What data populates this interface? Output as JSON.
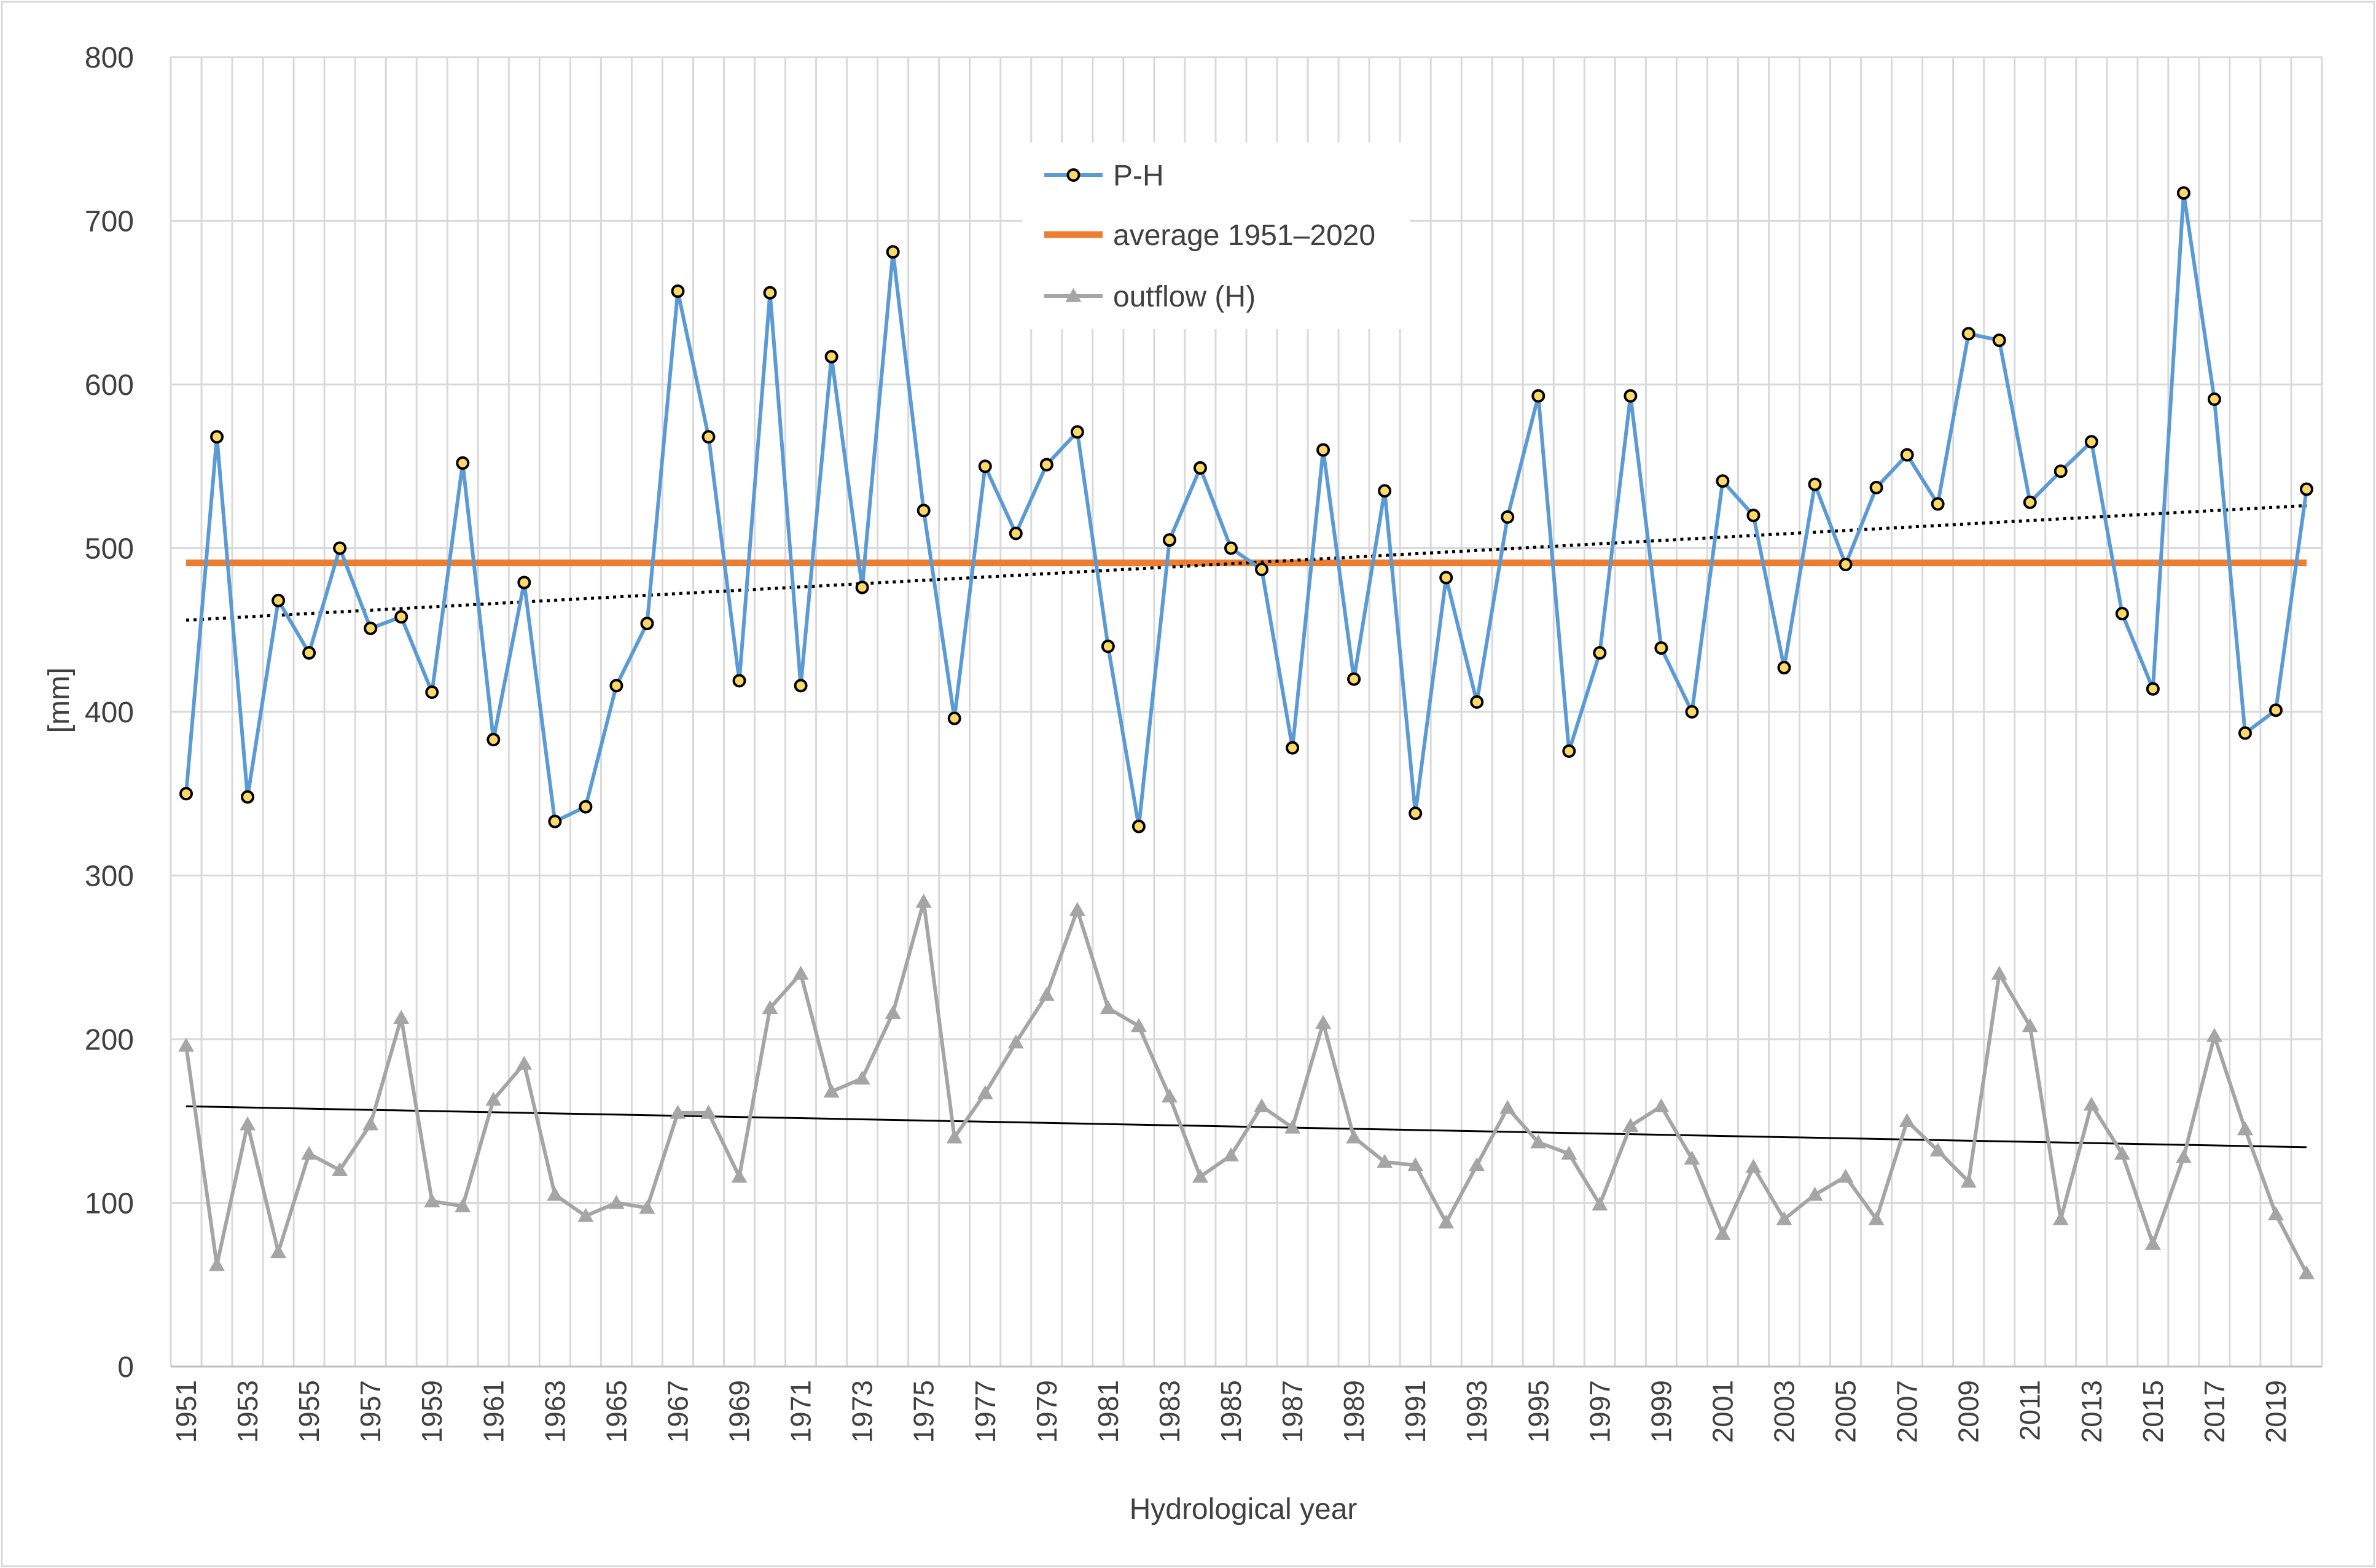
{
  "chart_data": {
    "type": "line",
    "title": "",
    "xlabel": "Hydrological year",
    "ylabel": "[mm]",
    "ylim": [
      0,
      800
    ],
    "ytick_step": 100,
    "grid": true,
    "legend_position": "top-center",
    "x": [
      1951,
      1952,
      1953,
      1954,
      1955,
      1956,
      1957,
      1958,
      1959,
      1960,
      1961,
      1962,
      1963,
      1964,
      1965,
      1966,
      1967,
      1968,
      1969,
      1970,
      1971,
      1972,
      1973,
      1974,
      1975,
      1976,
      1977,
      1978,
      1979,
      1980,
      1981,
      1982,
      1983,
      1984,
      1985,
      1986,
      1987,
      1988,
      1989,
      1990,
      1991,
      1992,
      1993,
      1994,
      1995,
      1996,
      1997,
      1998,
      1999,
      2000,
      2001,
      2002,
      2003,
      2004,
      2005,
      2006,
      2007,
      2008,
      2009,
      2010,
      2011,
      2012,
      2013,
      2014,
      2015,
      2016,
      2017,
      2018,
      2019,
      2020
    ],
    "x_tick_labels": [
      "1951",
      "1953",
      "1955",
      "1957",
      "1959",
      "1961",
      "1963",
      "1965",
      "1967",
      "1969",
      "1971",
      "1973",
      "1975",
      "1977",
      "1979",
      "1981",
      "1983",
      "1985",
      "1987",
      "1989",
      "1991",
      "1993",
      "1995",
      "1997",
      "1999",
      "2001",
      "2003",
      "2005",
      "2007",
      "2009",
      "2011",
      "2013",
      "2015",
      "2017",
      "2019"
    ],
    "series": [
      {
        "name": "P-H",
        "color": "#5B9BD5",
        "marker": "circle",
        "marker_fill": "#FFD966",
        "values": [
          350,
          568,
          348,
          468,
          436,
          500,
          451,
          458,
          412,
          552,
          383,
          479,
          333,
          342,
          416,
          454,
          657,
          568,
          419,
          656,
          416,
          617,
          476,
          681,
          523,
          396,
          550,
          509,
          551,
          571,
          440,
          330,
          505,
          549,
          500,
          487,
          378,
          560,
          420,
          535,
          338,
          482,
          406,
          519,
          593,
          376,
          436,
          593,
          439,
          400,
          541,
          520,
          427,
          539,
          490,
          537,
          557,
          527,
          631,
          627,
          528,
          547,
          565,
          460,
          414,
          717,
          591,
          387,
          401,
          536
        ]
      },
      {
        "name": "average 1951–2020",
        "color": "#ED7D31",
        "value": 491
      },
      {
        "name": "outflow (H)",
        "color": "#A5A5A5",
        "marker": "triangle",
        "values": [
          196,
          62,
          148,
          70,
          130,
          120,
          148,
          213,
          101,
          98,
          163,
          185,
          105,
          92,
          100,
          97,
          155,
          155,
          116,
          219,
          240,
          168,
          176,
          216,
          284,
          140,
          167,
          198,
          227,
          279,
          219,
          208,
          165,
          116,
          129,
          159,
          146,
          210,
          140,
          125,
          123,
          88,
          123,
          158,
          137,
          130,
          99,
          147,
          159,
          127,
          81,
          122,
          90,
          105,
          116,
          90,
          150,
          132,
          113,
          240,
          208,
          90,
          160,
          130,
          75,
          128,
          202,
          145,
          93,
          57
        ]
      }
    ],
    "trendlines": [
      {
        "series": "P-H",
        "style": "dotted",
        "color": "#000000",
        "start": [
          1951,
          456
        ],
        "end": [
          2020,
          526
        ]
      },
      {
        "series": "outflow (H)",
        "style": "solid",
        "color": "#000000",
        "start": [
          1951,
          159
        ],
        "end": [
          2020,
          134
        ]
      }
    ]
  }
}
